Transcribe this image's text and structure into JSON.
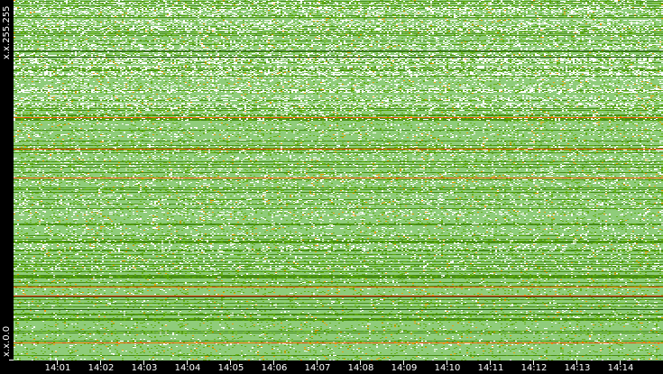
{
  "chart_data": {
    "type": "heatmap",
    "x_tick_labels": [
      "14:01",
      "14:02",
      "14:03",
      "14:04",
      "14:05",
      "14:06",
      "14:07",
      "14:08",
      "14:09",
      "14:10",
      "14:11",
      "14:12",
      "14:13",
      "14:14"
    ],
    "y_tick_labels": {
      "top": "x.x.255.255",
      "bottom": "x.x.0.0"
    },
    "colors": {
      "background": "#000000",
      "empty": "#ffffff",
      "low": "#8fcc7a",
      "medium": "#5aa800",
      "high": "#f0a000",
      "max": "#e83000"
    }
  }
}
